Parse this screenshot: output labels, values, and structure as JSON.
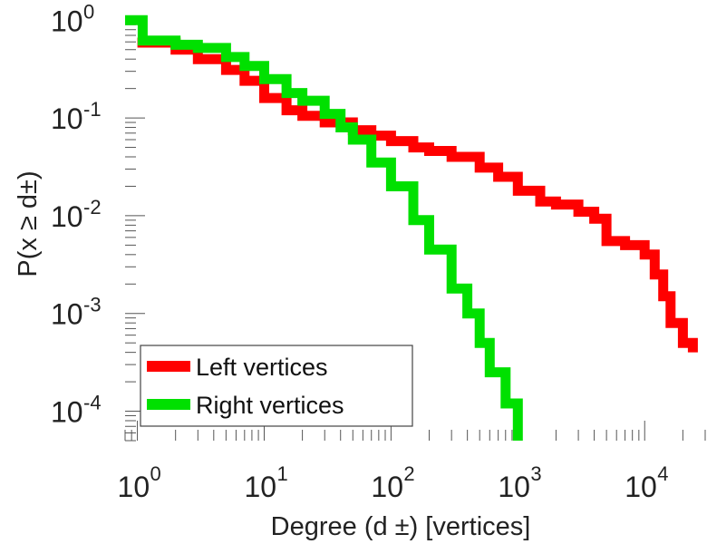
{
  "chart_data": {
    "type": "line",
    "xlabel": "Degree (d ±) [vertices]",
    "ylabel": "P(x ≥ d±)",
    "x_scale": "log",
    "y_scale": "log",
    "xlim": [
      0.8,
      30000
    ],
    "ylim": [
      5e-05,
      1.05
    ],
    "x_ticks": [
      {
        "value": 1,
        "base": "10",
        "exp": "0"
      },
      {
        "value": 10,
        "base": "10",
        "exp": "1"
      },
      {
        "value": 100,
        "base": "10",
        "exp": "2"
      },
      {
        "value": 1000,
        "base": "10",
        "exp": "3"
      },
      {
        "value": 10000,
        "base": "10",
        "exp": "4"
      }
    ],
    "y_ticks": [
      {
        "value": 1,
        "base": "10",
        "exp": "0"
      },
      {
        "value": 0.1,
        "base": "10",
        "exp": "-1"
      },
      {
        "value": 0.01,
        "base": "10",
        "exp": "-2"
      },
      {
        "value": 0.001,
        "base": "10",
        "exp": "-3"
      },
      {
        "value": 0.0001,
        "base": "10",
        "exp": "-4"
      }
    ],
    "grid": false,
    "legend_position": "bottom-left",
    "series": [
      {
        "name": "Left vertices",
        "color": "#ff0000",
        "step": true,
        "points": [
          [
            1,
            0.59
          ],
          [
            2,
            0.5
          ],
          [
            3,
            0.4
          ],
          [
            5,
            0.31
          ],
          [
            7,
            0.24
          ],
          [
            10,
            0.16
          ],
          [
            15,
            0.12
          ],
          [
            20,
            0.105
          ],
          [
            30,
            0.09
          ],
          [
            50,
            0.075
          ],
          [
            70,
            0.066
          ],
          [
            100,
            0.058
          ],
          [
            150,
            0.05
          ],
          [
            200,
            0.046
          ],
          [
            300,
            0.04
          ],
          [
            500,
            0.031
          ],
          [
            700,
            0.025
          ],
          [
            1000,
            0.018
          ],
          [
            1500,
            0.014
          ],
          [
            2000,
            0.013
          ],
          [
            3000,
            0.011
          ],
          [
            4000,
            0.0093
          ],
          [
            5000,
            0.0055
          ],
          [
            7000,
            0.005
          ],
          [
            10000,
            0.004
          ],
          [
            12000,
            0.0025
          ],
          [
            14000,
            0.0015
          ],
          [
            16000,
            0.0008
          ],
          [
            20000,
            0.0005
          ],
          [
            24000,
            0.0004
          ]
        ]
      },
      {
        "name": "Right vertices",
        "color": "#00e000",
        "step": true,
        "points": [
          [
            0.8,
            1.0
          ],
          [
            1.1,
            1.0
          ],
          [
            1.1,
            0.62
          ],
          [
            2,
            0.62
          ],
          [
            2,
            0.56
          ],
          [
            3,
            0.52
          ],
          [
            5,
            0.42
          ],
          [
            7,
            0.34
          ],
          [
            10,
            0.25
          ],
          [
            15,
            0.18
          ],
          [
            20,
            0.15
          ],
          [
            30,
            0.11
          ],
          [
            40,
            0.08
          ],
          [
            50,
            0.06
          ],
          [
            70,
            0.035
          ],
          [
            100,
            0.02
          ],
          [
            150,
            0.009
          ],
          [
            200,
            0.0045
          ],
          [
            300,
            0.0018
          ],
          [
            400,
            0.001
          ],
          [
            500,
            0.0005
          ],
          [
            600,
            0.00025
          ],
          [
            800,
            0.00012
          ],
          [
            1000,
            5e-05
          ]
        ]
      }
    ]
  }
}
